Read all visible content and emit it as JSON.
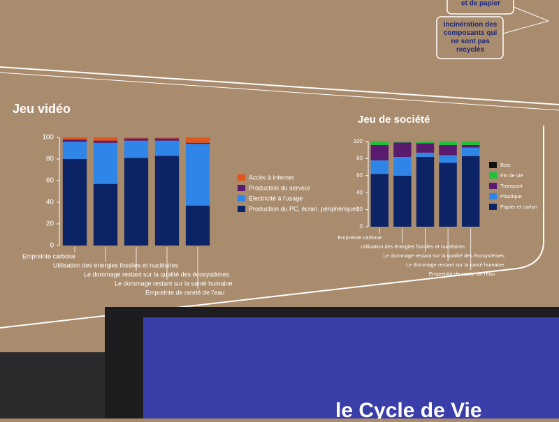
{
  "chart_data": [
    {
      "type": "bar",
      "stacked": true,
      "title": "Jeu vidéo",
      "categories": [
        "Empreinte carbone",
        "Utilisation des énergies fossiles et nucléaires",
        "Le dommage restant sur la qualité des écosystèmes",
        "Le dommage restant sur la santé humaine",
        "Empreinte de rareté de l'eau"
      ],
      "series": [
        {
          "name": "Production du PC, écran, périphériques",
          "color": "#0c2466",
          "values": [
            80,
            57,
            81,
            83,
            37
          ]
        },
        {
          "name": "Electricité à l'usage",
          "color": "#2f86e8",
          "values": [
            16,
            38,
            16,
            14,
            57
          ]
        },
        {
          "name": "Production du serveur",
          "color": "#5a1a6e",
          "values": [
            2,
            2,
            2,
            2,
            1
          ]
        },
        {
          "name": "Accès à internet",
          "color": "#e0561c",
          "values": [
            2,
            3,
            1,
            1,
            5
          ]
        }
      ],
      "ylim": [
        0,
        100
      ],
      "yticks": [
        0,
        20,
        40,
        60,
        80,
        100
      ]
    },
    {
      "type": "bar",
      "stacked": true,
      "title": "Jeu de société",
      "categories": [
        "Empreinte carbone",
        "Utilisation des énergies fossiles et nucléaires",
        "Le dommage restant sur la qualité des écosystèmes",
        "Le dommage restant sur la santé humaine",
        "Empreinte de rareté de l'eau"
      ],
      "series": [
        {
          "name": "Papier et carton",
          "color": "#0c2466",
          "values": [
            62,
            60,
            82,
            75,
            83
          ]
        },
        {
          "name": "Plastique",
          "color": "#2f86e8",
          "values": [
            16,
            22,
            5,
            9,
            10
          ]
        },
        {
          "name": "Transport",
          "color": "#5a1a6e",
          "values": [
            18,
            17,
            11,
            12,
            3
          ]
        },
        {
          "name": "Fin de vie",
          "color": "#1fc23a",
          "values": [
            4,
            1,
            2,
            4,
            4
          ]
        },
        {
          "name": "Bois",
          "color": "#111111",
          "values": [
            0,
            0,
            0,
            0,
            0
          ]
        }
      ],
      "ylim": [
        0,
        100
      ],
      "yticks": [
        0,
        20,
        40,
        60,
        80,
        100
      ]
    }
  ],
  "notes": [
    "et de papier",
    "Incinération des composants qui ne sont pas recyclés",
    "le Cycle de Vie"
  ]
}
